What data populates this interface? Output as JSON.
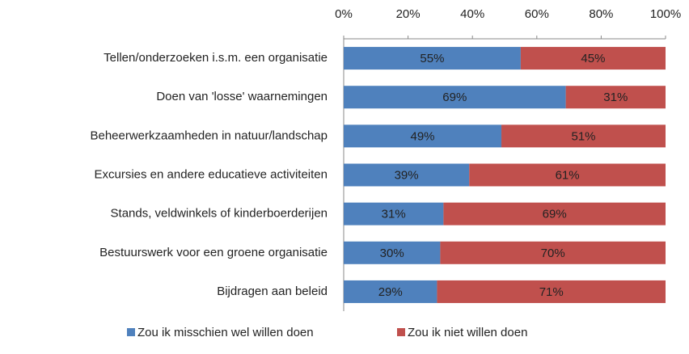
{
  "chart_data": {
    "type": "stacked-bar-horizontal",
    "categories": [
      "Tellen/onderzoeken i.s.m. een organisatie",
      "Doen van 'losse' waarnemingen",
      "Beheerwerkzaamheden in natuur/landschap",
      "Excursies en andere educatieve activiteiten",
      "Stands, veldwinkels of kinderboerderijen",
      "Bestuurswerk voor een groene organisatie",
      "Bijdragen aan beleid"
    ],
    "series": [
      {
        "name": "Zou ik misschien wel willen doen",
        "color": "#4f81bd",
        "values": [
          55,
          69,
          49,
          39,
          31,
          30,
          29
        ],
        "value_labels": [
          "55%",
          "69%",
          "49%",
          "39%",
          "31%",
          "30%",
          "29%"
        ]
      },
      {
        "name": "Zou ik niet willen doen",
        "color": "#c0504d",
        "values": [
          45,
          31,
          51,
          61,
          69,
          70,
          71
        ],
        "value_labels": [
          "45%",
          "31%",
          "51%",
          "61%",
          "69%",
          "70%",
          "71%"
        ]
      }
    ],
    "xlim": [
      0,
      100
    ],
    "xticks": [
      {
        "value": 0,
        "label": "0%"
      },
      {
        "value": 20,
        "label": "20%"
      },
      {
        "value": 40,
        "label": "40%"
      },
      {
        "value": 60,
        "label": "60%"
      },
      {
        "value": 80,
        "label": "80%"
      },
      {
        "value": 100,
        "label": "100%"
      }
    ],
    "legend": "bottom"
  }
}
